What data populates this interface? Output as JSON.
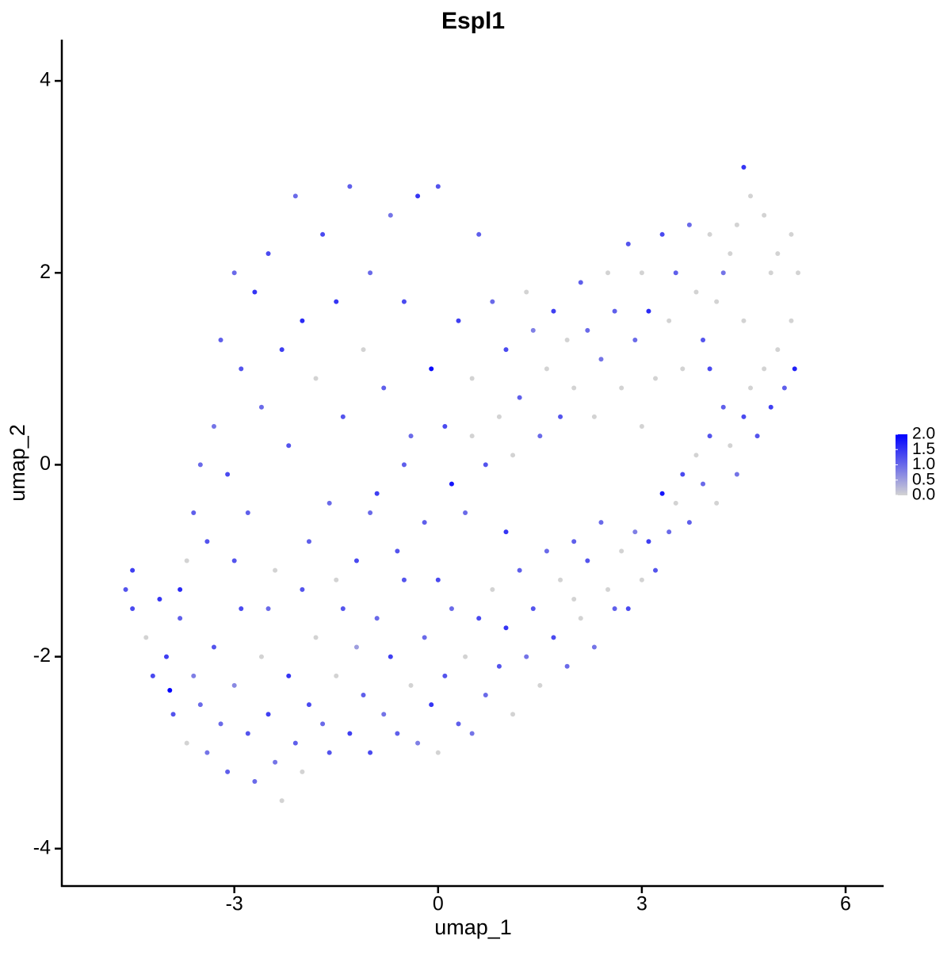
{
  "chart_data": {
    "type": "scatter",
    "title": "Espl1",
    "x_label": "umap_1",
    "y_label": "umap_2",
    "xlim": [
      -5.54,
      6.56
    ],
    "ylim": [
      -4.39,
      4.43
    ],
    "xticks": [
      -3,
      0,
      3,
      6
    ],
    "yticks": [
      -4,
      -2,
      0,
      2,
      4
    ],
    "clim": [
      0,
      2
    ],
    "color_low": "#d3d3d3",
    "color_high": "#0000ff",
    "cticks": [
      {
        "value": 0,
        "label": "0.0"
      },
      {
        "value": 0.5,
        "label": "0.5"
      },
      {
        "value": 1,
        "label": "1.0"
      },
      {
        "value": 1.5,
        "label": "1.5"
      },
      {
        "value": 2,
        "label": "2.0"
      }
    ],
    "x": [
      -4.6,
      -4.5,
      -4.5,
      -4.3,
      -4.2,
      -4.1,
      -4.0,
      -3.95,
      -3.9,
      -3.8,
      -3.7,
      -3.6,
      -3.5,
      -3.4,
      -3.3,
      -3.2,
      -3.1,
      -3.0,
      -2.9,
      -2.8,
      -2.7,
      -2.6,
      -2.5,
      -2.4,
      -2.3,
      -2.2,
      -2.1,
      -2.0,
      -1.9,
      -1.8,
      -1.7,
      -1.6,
      -1.5,
      -1.4,
      -1.3,
      -1.2,
      -1.1,
      -1.0,
      -0.9,
      -0.8,
      -0.7,
      -0.6,
      -0.5,
      -0.4,
      -0.3,
      -0.2,
      -0.1,
      0.0,
      0.1,
      0.2,
      0.3,
      0.4,
      0.5,
      0.6,
      0.7,
      0.8,
      0.9,
      1.0,
      1.1,
      1.2,
      1.3,
      1.4,
      1.5,
      1.6,
      1.7,
      1.8,
      1.9,
      2.0,
      2.1,
      2.2,
      2.3,
      2.4,
      2.5,
      2.6,
      2.7,
      2.8,
      2.9,
      3.0,
      3.1,
      3.2,
      3.3,
      3.4,
      3.5,
      3.6,
      3.7,
      3.8,
      3.9,
      4.0,
      4.1,
      4.2,
      4.3,
      4.4,
      4.5,
      4.6,
      4.7,
      4.8,
      4.9,
      5.0,
      5.1,
      5.2,
      5.25,
      5.3,
      5.2,
      5.0,
      4.8,
      4.6,
      4.5,
      4.4,
      4.3,
      4.2,
      4.1,
      4.0,
      3.9,
      3.8,
      3.7,
      3.6,
      3.5,
      3.4,
      3.3,
      3.2,
      3.1,
      3.0,
      2.9,
      2.8,
      2.7,
      2.6,
      2.5,
      2.4,
      2.3,
      2.2,
      2.1,
      2.0,
      1.9,
      1.8,
      1.7,
      1.6,
      1.5,
      1.4,
      1.3,
      1.2,
      1.1,
      1.0,
      0.9,
      0.8,
      0.7,
      0.6,
      0.5,
      0.4,
      0.3,
      0.2,
      0.1,
      0.0,
      -0.1,
      -0.2,
      -0.3,
      -0.4,
      -0.5,
      -0.6,
      -0.7,
      -0.8,
      -0.9,
      -1.0,
      -1.1,
      -1.2,
      -1.3,
      -1.4,
      -1.5,
      -1.6,
      -1.7,
      -1.8,
      -1.9,
      -2.0,
      -2.1,
      -2.2,
      -2.3,
      -2.4,
      -2.5,
      -2.6,
      -2.7,
      -2.8,
      -2.9,
      -3.0,
      -3.1,
      -3.2,
      -3.3,
      -3.4,
      -3.5,
      -3.6,
      -3.7,
      -3.8,
      -2.0,
      -1.0,
      0.0,
      1.0,
      2.0,
      -2.5,
      -3.0,
      -1.5,
      -0.5,
      0.5,
      3.0,
      4.5,
      4.9,
      4.0
    ],
    "y": [
      -1.3,
      -1.1,
      -1.5,
      -1.8,
      -2.2,
      -1.4,
      -2.0,
      -2.35,
      -2.6,
      -1.6,
      -2.9,
      -2.2,
      -2.5,
      -3.0,
      -1.9,
      -2.7,
      -3.2,
      -2.3,
      -1.5,
      -2.8,
      -3.3,
      -2.0,
      -2.6,
      -3.1,
      -3.5,
      -2.2,
      -2.9,
      -3.2,
      -2.5,
      -1.8,
      -2.7,
      -3.0,
      -2.2,
      -1.5,
      -2.8,
      -1.9,
      -2.4,
      -3.0,
      -1.6,
      -2.6,
      -2.0,
      -2.8,
      -1.2,
      -2.3,
      -2.9,
      -1.8,
      -2.5,
      -3.0,
      -2.2,
      -1.5,
      -2.7,
      -2.0,
      -2.8,
      -1.6,
      -2.4,
      -1.3,
      -2.1,
      -1.7,
      -2.6,
      -1.1,
      -2.0,
      -1.5,
      -2.3,
      -0.9,
      -1.8,
      -1.2,
      -2.1,
      -0.8,
      -1.6,
      -1.0,
      -1.9,
      -0.6,
      -1.3,
      -1.5,
      -0.9,
      -1.5,
      -0.7,
      -1.2,
      -0.8,
      -1.1,
      -0.3,
      -0.7,
      -0.4,
      -0.1,
      -0.6,
      0.1,
      -0.2,
      0.3,
      -0.4,
      0.6,
      0.2,
      -0.1,
      0.5,
      0.8,
      0.3,
      1.0,
      0.6,
      1.2,
      0.8,
      1.5,
      1.0,
      2.0,
      2.4,
      2.2,
      2.6,
      2.8,
      3.1,
      2.5,
      2.2,
      2.0,
      1.7,
      2.4,
      1.3,
      1.8,
      2.5,
      1.0,
      2.0,
      1.5,
      2.4,
      0.9,
      1.6,
      2.0,
      1.3,
      2.3,
      0.8,
      1.6,
      2.0,
      1.1,
      0.5,
      1.4,
      1.9,
      0.8,
      1.3,
      0.5,
      1.6,
      1.0,
      0.3,
      1.4,
      1.8,
      0.7,
      0.1,
      1.2,
      0.5,
      1.7,
      0.0,
      2.4,
      0.9,
      -0.5,
      1.5,
      -0.2,
      0.4,
      2.9,
      1.0,
      -0.6,
      2.8,
      0.3,
      1.7,
      -0.9,
      2.6,
      0.8,
      -0.3,
      2.0,
      1.2,
      -1.0,
      2.9,
      0.5,
      1.7,
      -0.4,
      2.4,
      0.9,
      -0.8,
      1.5,
      2.8,
      0.2,
      1.2,
      -1.1,
      2.2,
      0.6,
      1.8,
      -0.5,
      1.0,
      2.0,
      -0.1,
      1.3,
      0.4,
      -0.8,
      0.0,
      -0.5,
      -1.0,
      -1.3,
      -1.3,
      -0.5,
      -1.2,
      -0.7,
      -1.4,
      -1.5,
      -1.0,
      -1.2,
      0.0,
      0.3,
      0.4,
      1.5,
      2.0,
      1.0
    ],
    "values": [
      1.2,
      1.4,
      1.3,
      0.0,
      1.3,
      1.5,
      1.4,
      2.0,
      1.2,
      1.1,
      0.0,
      0.8,
      1.0,
      0.9,
      1.2,
      1.0,
      1.1,
      0.7,
      1.3,
      1.2,
      1.0,
      0.0,
      1.4,
      0.9,
      0.0,
      1.5,
      1.1,
      0.0,
      1.3,
      0.0,
      1.0,
      1.2,
      0.0,
      1.2,
      1.4,
      0.5,
      1.1,
      1.3,
      1.0,
      0.9,
      1.4,
      1.1,
      1.2,
      0.0,
      0.8,
      1.0,
      1.5,
      0.0,
      1.2,
      1.0,
      1.1,
      0.0,
      0.9,
      1.3,
      1.0,
      0.0,
      1.2,
      1.5,
      0.0,
      1.1,
      0.9,
      1.2,
      0.0,
      1.0,
      1.3,
      0.0,
      1.0,
      1.1,
      0.0,
      1.2,
      0.9,
      1.0,
      0.0,
      1.1,
      0.0,
      1.3,
      0.8,
      0.0,
      1.4,
      1.2,
      1.8,
      1.0,
      0.0,
      1.3,
      1.1,
      0.0,
      1.0,
      1.2,
      0.0,
      1.1,
      0.0,
      0.9,
      1.3,
      0.0,
      1.2,
      0.0,
      1.4,
      0.0,
      1.1,
      0.0,
      1.7,
      0.0,
      0.0,
      0.0,
      0.0,
      0.0,
      1.5,
      0.0,
      0.0,
      0.9,
      0.0,
      0.0,
      1.2,
      0.0,
      1.0,
      0.0,
      1.1,
      0.0,
      1.3,
      0.0,
      1.6,
      0.0,
      1.0,
      1.2,
      0.0,
      1.1,
      0.0,
      0.9,
      0.0,
      1.0,
      1.1,
      0.0,
      0.0,
      1.2,
      1.4,
      0.0,
      1.0,
      0.8,
      0.0,
      1.1,
      0.0,
      1.3,
      0.0,
      1.0,
      1.2,
      1.1,
      0.0,
      1.0,
      1.4,
      1.8,
      1.3,
      1.2,
      1.9,
      1.1,
      1.5,
      1.0,
      1.3,
      1.2,
      0.9,
      1.1,
      1.4,
      1.0,
      0.0,
      1.3,
      1.1,
      1.2,
      1.5,
      1.0,
      1.3,
      0.0,
      1.1,
      1.6,
      1.0,
      1.2,
      1.4,
      0.0,
      1.3,
      1.0,
      1.5,
      1.1,
      1.2,
      1.0,
      1.3,
      1.1,
      0.9,
      1.2,
      1.0,
      1.1,
      0.0,
      1.6,
      1.2,
      1.0,
      1.3,
      1.5,
      0.0,
      1.0,
      1.2,
      0.0,
      1.1,
      0.0,
      0.0,
      0.0,
      0.0,
      1.3
    ]
  }
}
